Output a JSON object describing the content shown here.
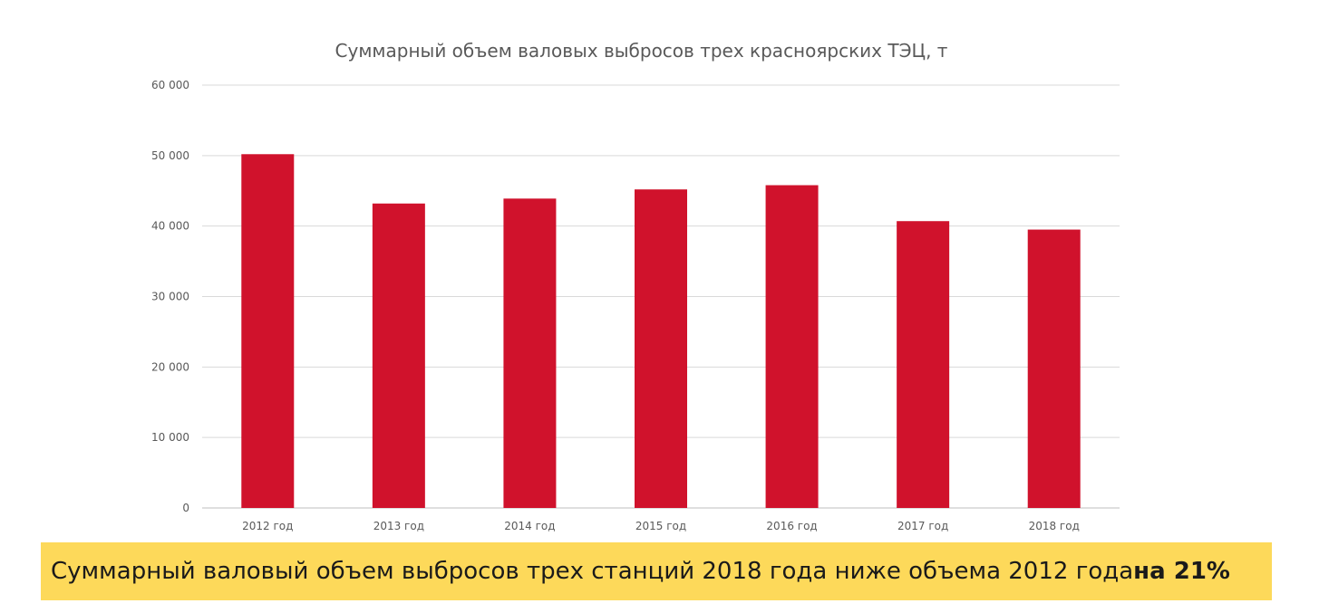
{
  "chart_data": {
    "type": "bar",
    "title": "Суммарный объем валовых выбросов трех красноярских ТЭЦ, т",
    "categories": [
      "2012 год",
      "2013 год",
      "2014 год",
      "2015 год",
      "2016 год",
      "2017 год",
      "2018 год"
    ],
    "values": [
      50200,
      43200,
      43900,
      45200,
      45800,
      40700,
      39500
    ],
    "ylim": [
      0,
      60000
    ],
    "yticks": [
      0,
      10000,
      20000,
      30000,
      40000,
      50000,
      60000
    ],
    "ytick_labels": [
      "0",
      "10 000",
      "20 000",
      "30 000",
      "40 000",
      "50 000",
      "60 000"
    ],
    "xlabel": "",
    "ylabel": "",
    "grid": true,
    "legend": "none",
    "bar_color": "#d0122c"
  },
  "banner": {
    "text": "Суммарный валовый объем выбросов трех станций 2018 года ниже объема 2012 года ",
    "highlight": "на 21%",
    "color": "#fdd95a"
  }
}
